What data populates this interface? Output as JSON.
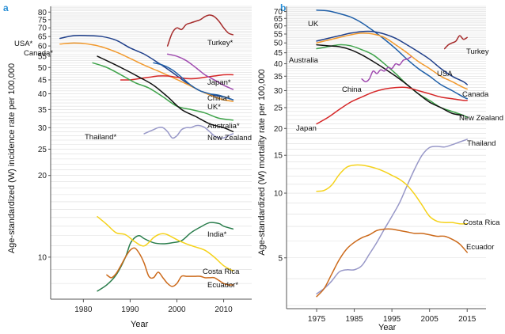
{
  "chart_data": [
    {
      "panel": "a",
      "type": "line",
      "scale": "log",
      "xlabel": "Year",
      "ylabel": "Age-standardized (W) incidence rate per 100,000",
      "xlim": [
        1973,
        2016
      ],
      "ylim": [
        7,
        84
      ],
      "xticks": [
        1980,
        1990,
        2000,
        2010
      ],
      "yticks": [
        10,
        20,
        25,
        30,
        35,
        40,
        45,
        50,
        55,
        60,
        65,
        70,
        75,
        80
      ],
      "series": [
        {
          "name": "Turkey*",
          "color": "#a52a2a",
          "x": [
            1998,
            1999,
            2000,
            2001,
            2002,
            2003,
            2004,
            2005,
            2006,
            2007,
            2008,
            2009,
            2010,
            2011,
            2012
          ],
          "values": [
            60,
            67,
            70,
            69,
            72,
            73,
            74,
            75,
            77,
            78,
            77,
            74,
            70,
            67,
            66
          ]
        },
        {
          "name": "USA*",
          "color": "#1f3f8a",
          "x": [
            1975,
            1978,
            1981,
            1984,
            1987,
            1990,
            1993,
            1996,
            1999,
            2002,
            2005,
            2008,
            2010,
            2012
          ],
          "values": [
            64,
            65.5,
            65.5,
            65,
            63,
            59,
            56,
            52,
            48,
            44,
            41,
            39.5,
            39,
            38
          ]
        },
        {
          "name": "Canada*",
          "color": "#f29a2e",
          "x": [
            1975,
            1978,
            1981,
            1984,
            1987,
            1990,
            1993,
            1996,
            1999,
            2002,
            2005,
            2008,
            2010,
            2012
          ],
          "values": [
            61,
            61.5,
            61,
            59.5,
            57,
            54,
            51,
            48.5,
            46,
            43.5,
            41,
            39,
            38,
            37.5
          ]
        },
        {
          "name": "Japan*",
          "color": "#d62728",
          "x": [
            1988,
            1990,
            1992,
            1994,
            1996,
            1998,
            2000,
            2002,
            2004,
            2006,
            2008,
            2010,
            2012
          ],
          "values": [
            45,
            45,
            45.5,
            46,
            46.5,
            46.5,
            46,
            45.5,
            45.5,
            46,
            46.5,
            47,
            47
          ]
        },
        {
          "name": "China*",
          "color": "#a04cb0",
          "x": [
            1998,
            2000,
            2002,
            2004,
            2006,
            2008,
            2010,
            2012
          ],
          "values": [
            56,
            55,
            53,
            50,
            47,
            45,
            43,
            41.5
          ]
        },
        {
          "name": "UK*",
          "color": "#1f5fa8",
          "x": [
            1995,
            1997,
            1999,
            2001,
            2003,
            2005,
            2007,
            2009,
            2011,
            2012
          ],
          "values": [
            52,
            51,
            49,
            46,
            43,
            41,
            40,
            39.5,
            38.5,
            38
          ]
        },
        {
          "name": "Australia*",
          "color": "#3ea34a",
          "x": [
            1982,
            1985,
            1988,
            1991,
            1994,
            1997,
            2000,
            2003,
            2006,
            2009,
            2012
          ],
          "values": [
            52,
            50,
            47,
            44,
            42,
            39,
            36,
            35,
            34,
            32.5,
            32
          ]
        },
        {
          "name": "New Zealand",
          "color": "#111111",
          "x": [
            1983,
            1986,
            1989,
            1992,
            1995,
            1998,
            2001,
            2004,
            2007,
            2010,
            2012
          ],
          "values": [
            55,
            52,
            49,
            46,
            43,
            39,
            35,
            33,
            31,
            30,
            29
          ]
        },
        {
          "name": "Thailand*",
          "color": "#9898c8",
          "x": [
            1993,
            1994,
            1995,
            1996,
            1997,
            1998,
            1999,
            2000,
            2001,
            2002,
            2003,
            2004,
            2005,
            2006,
            2007,
            2008,
            2009,
            2010,
            2011,
            2012
          ],
          "values": [
            28.5,
            29,
            29.5,
            30,
            30,
            29,
            27.5,
            28,
            29.5,
            30,
            30,
            30.5,
            30.5,
            30,
            29,
            28,
            27.5,
            27.5,
            28,
            28.5
          ]
        },
        {
          "name": "India*",
          "color": "#2a7d4c",
          "x": [
            1983,
            1985,
            1987,
            1989,
            1990,
            1991,
            1992,
            1993,
            1995,
            1997,
            1999,
            2001,
            2003,
            2005,
            2007,
            2009,
            2010,
            2012
          ],
          "values": [
            7.5,
            7.9,
            8.6,
            10.0,
            11.2,
            11.8,
            12.0,
            11.7,
            11.3,
            11.2,
            11.3,
            11.5,
            12.3,
            12.9,
            13.4,
            13.3,
            13.0,
            12.7
          ]
        },
        {
          "name": "Costa Rica",
          "color": "#f5d21a",
          "x": [
            1983,
            1985,
            1987,
            1989,
            1991,
            1993,
            1995,
            1996,
            1997,
            1998,
            2000,
            2002,
            2004,
            2006,
            2008,
            2010,
            2012
          ],
          "values": [
            14.1,
            13.2,
            12.3,
            12.1,
            11.4,
            11.0,
            11.8,
            12.1,
            12.2,
            12.1,
            11.6,
            11.2,
            10.9,
            10.6,
            10.0,
            9.3,
            8.9
          ]
        },
        {
          "name": "Ecuador*",
          "color": "#cc6a1b",
          "x": [
            1985,
            1986,
            1987,
            1988,
            1989,
            1990,
            1991,
            1992,
            1993,
            1994,
            1995,
            1996,
            1997,
            1998,
            1999,
            2000,
            2001,
            2002,
            2003,
            2004,
            2005,
            2006,
            2007,
            2008,
            2009,
            2010,
            2011,
            2012
          ],
          "values": [
            8.6,
            8.4,
            8.7,
            9.3,
            10.0,
            10.6,
            10.8,
            10.3,
            9.5,
            8.5,
            8.4,
            8.8,
            8.4,
            8.0,
            7.8,
            8.0,
            8.5,
            8.5,
            8.5,
            8.5,
            8.5,
            8.4,
            8.4,
            8.4,
            8.2,
            8.0,
            7.9,
            7.9
          ]
        }
      ]
    },
    {
      "panel": "b",
      "type": "line",
      "scale": "log",
      "xlabel": "Year",
      "ylabel": "Age-standardized (W) mortality rate per 100,000",
      "xlim": [
        1967,
        2020
      ],
      "ylim": [
        2.9,
        74
      ],
      "xticks": [
        1975,
        1985,
        1995,
        2005,
        2015
      ],
      "yticks": [
        5,
        10,
        15,
        20,
        25,
        30,
        35,
        40,
        45,
        50,
        55,
        60,
        65,
        70
      ],
      "series": [
        {
          "name": "UK",
          "color": "#1f5fa8",
          "x": [
            1975,
            1978,
            1981,
            1984,
            1987,
            1990,
            1993,
            1996,
            1999,
            2002,
            2005,
            2008,
            2011,
            2014,
            2015
          ],
          "values": [
            71,
            70.5,
            68.5,
            66,
            62,
            57,
            52,
            47,
            42,
            38,
            35,
            32,
            30,
            28,
            27.5
          ]
        },
        {
          "name": "Turkey",
          "color": "#a52a2a",
          "x": [
            2009,
            2010,
            2011,
            2012,
            2013,
            2014,
            2015
          ],
          "values": [
            47,
            49,
            50,
            51,
            54,
            52,
            53
          ]
        },
        {
          "name": "USA",
          "color": "#f29a2e",
          "x": [
            1975,
            1978,
            1981,
            1984,
            1987,
            1990,
            1993,
            1996,
            1999,
            2002,
            2005,
            2008,
            2011,
            2014,
            2015
          ],
          "values": [
            50,
            51.5,
            53,
            54.5,
            55.5,
            55,
            53,
            49,
            45,
            41,
            38,
            35,
            33,
            31,
            30.5
          ]
        },
        {
          "name": "Canada",
          "color": "#1f3f8a",
          "x": [
            1975,
            1978,
            1981,
            1984,
            1987,
            1990,
            1993,
            1996,
            1999,
            2002,
            2005,
            2008,
            2011,
            2014,
            2015
          ],
          "values": [
            51,
            52.5,
            54,
            55.5,
            56.5,
            56.5,
            55,
            52.5,
            49,
            45.5,
            42,
            38,
            35,
            33,
            32
          ]
        },
        {
          "name": "Australia",
          "color": "#3ea34a",
          "x": [
            1975,
            1978,
            1981,
            1984,
            1987,
            1990,
            1993,
            1996,
            1999,
            2002,
            2005,
            2008,
            2011,
            2014,
            2015
          ],
          "values": [
            47,
            48,
            49,
            48.5,
            46.5,
            44,
            40,
            36,
            32,
            29,
            27,
            25,
            24,
            23,
            22.5
          ]
        },
        {
          "name": "New Zealand",
          "color": "#111111",
          "x": [
            1975,
            1978,
            1981,
            1984,
            1987,
            1990,
            1993,
            1996,
            1999,
            2002,
            2005,
            2008,
            2011,
            2014
          ],
          "values": [
            49,
            48.5,
            48,
            46.5,
            44,
            41,
            38,
            35,
            32,
            29,
            26.5,
            25,
            23.5,
            23
          ]
        },
        {
          "name": "China",
          "color": "#a04cb0",
          "x": [
            1987,
            1988,
            1989,
            1990,
            1991,
            1992,
            1993,
            1994,
            1995,
            1996,
            1997,
            1998,
            1999,
            2000
          ],
          "values": [
            34,
            33,
            34,
            37,
            36,
            37.5,
            37,
            38.5,
            38,
            40,
            39.5,
            41.5,
            42,
            43
          ]
        },
        {
          "name": "Japan",
          "color": "#d62728",
          "x": [
            1975,
            1978,
            1981,
            1984,
            1987,
            1990,
            1993,
            1996,
            1999,
            2002,
            2005,
            2008,
            2011,
            2014,
            2015
          ],
          "values": [
            21,
            22.5,
            24.5,
            26.5,
            28,
            29.5,
            30.5,
            31,
            31,
            30,
            29,
            28,
            27.5,
            27,
            27
          ]
        },
        {
          "name": "Thailand",
          "color": "#9898c8",
          "x": [
            1975,
            1977,
            1979,
            1981,
            1983,
            1985,
            1987,
            1989,
            1991,
            1993,
            1995,
            1997,
            1999,
            2001,
            2003,
            2005,
            2007,
            2009,
            2011,
            2013,
            2015
          ],
          "values": [
            3.4,
            3.6,
            3.9,
            4.3,
            4.4,
            4.4,
            4.6,
            5.2,
            5.9,
            6.8,
            7.8,
            9.0,
            10.8,
            12.9,
            15.0,
            16.3,
            16.5,
            16.4,
            16.8,
            17.3,
            17.8
          ]
        },
        {
          "name": "Costa Rica",
          "color": "#f5d21a",
          "x": [
            1975,
            1977,
            1979,
            1981,
            1983,
            1985,
            1987,
            1989,
            1991,
            1993,
            1995,
            1997,
            1999,
            2001,
            2003,
            2005,
            2007,
            2009,
            2011,
            2013,
            2015
          ],
          "values": [
            10.2,
            10.3,
            10.9,
            12.2,
            13.2,
            13.5,
            13.5,
            13.3,
            13.0,
            12.6,
            12.1,
            11.6,
            10.9,
            9.9,
            8.8,
            7.8,
            7.4,
            7.3,
            7.3,
            7.2,
            7.2
          ]
        },
        {
          "name": "Ecuador",
          "color": "#cc6a1b",
          "x": [
            1975,
            1977,
            1979,
            1981,
            1983,
            1985,
            1987,
            1989,
            1991,
            1993,
            1995,
            1997,
            1999,
            2001,
            2003,
            2005,
            2007,
            2009,
            2011,
            2013,
            2015
          ],
          "values": [
            3.3,
            3.6,
            4.2,
            4.9,
            5.5,
            5.9,
            6.2,
            6.4,
            6.7,
            6.8,
            6.8,
            6.7,
            6.6,
            6.5,
            6.5,
            6.4,
            6.3,
            6.3,
            6.1,
            5.8,
            5.3
          ]
        }
      ]
    }
  ],
  "labels": {
    "a": {
      "panel_letter": "a",
      "series": [
        {
          "text": "Turkey*",
          "series": 0
        },
        {
          "text": "USA*",
          "series": 1
        },
        {
          "text": "Canada*",
          "series": 2
        },
        {
          "text": "Japan*",
          "series": 3
        },
        {
          "text": "China*",
          "series": 4
        },
        {
          "text": "UK*",
          "series": 5
        },
        {
          "text": "Australia*",
          "series": 6
        },
        {
          "text": "New Zealand",
          "series": 7
        },
        {
          "text": "Thailand*",
          "series": 8
        },
        {
          "text": "India*",
          "series": 9
        },
        {
          "text": "Costa Rica",
          "series": 10
        },
        {
          "text": "Ecuador*",
          "series": 11
        }
      ]
    },
    "b": {
      "panel_letter": "b",
      "series": [
        {
          "text": "UK",
          "series": 0
        },
        {
          "text": "Turkey",
          "series": 1
        },
        {
          "text": "Australia",
          "series": 4
        },
        {
          "text": "USA",
          "series": 2
        },
        {
          "text": "Canada",
          "series": 3
        },
        {
          "text": "China",
          "series": 6
        },
        {
          "text": "New Zealand",
          "series": 5
        },
        {
          "text": "Japan",
          "series": 7
        },
        {
          "text": "Thailand",
          "series": 8
        },
        {
          "text": "Costa Rica",
          "series": 9
        },
        {
          "text": "Ecuador",
          "series": 10
        }
      ]
    }
  }
}
